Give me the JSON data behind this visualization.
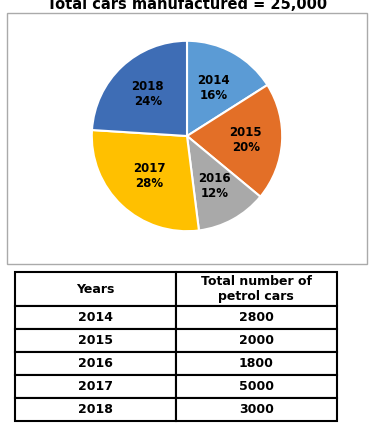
{
  "title": "Total cars manufactured = 25,000",
  "slices": [
    16,
    20,
    12,
    28,
    24
  ],
  "slice_colors": [
    "#5B9BD5",
    "#E36F27",
    "#A9A9A9",
    "#FFC000",
    "#3E6DB5"
  ],
  "label_texts": [
    "2014\n16%",
    "2015\n20%",
    "2016\n12%",
    "2017\n28%",
    "2018\n24%"
  ],
  "label_radii": [
    0.58,
    0.62,
    0.6,
    0.58,
    0.6
  ],
  "startangle": 90,
  "table_col1": [
    "Years",
    "2014",
    "2015",
    "2016",
    "2017",
    "2018"
  ],
  "table_col2_header": "Total number of\npetrol cars",
  "table_col2": [
    "2800",
    "2000",
    "1800",
    "5000",
    "3000"
  ]
}
